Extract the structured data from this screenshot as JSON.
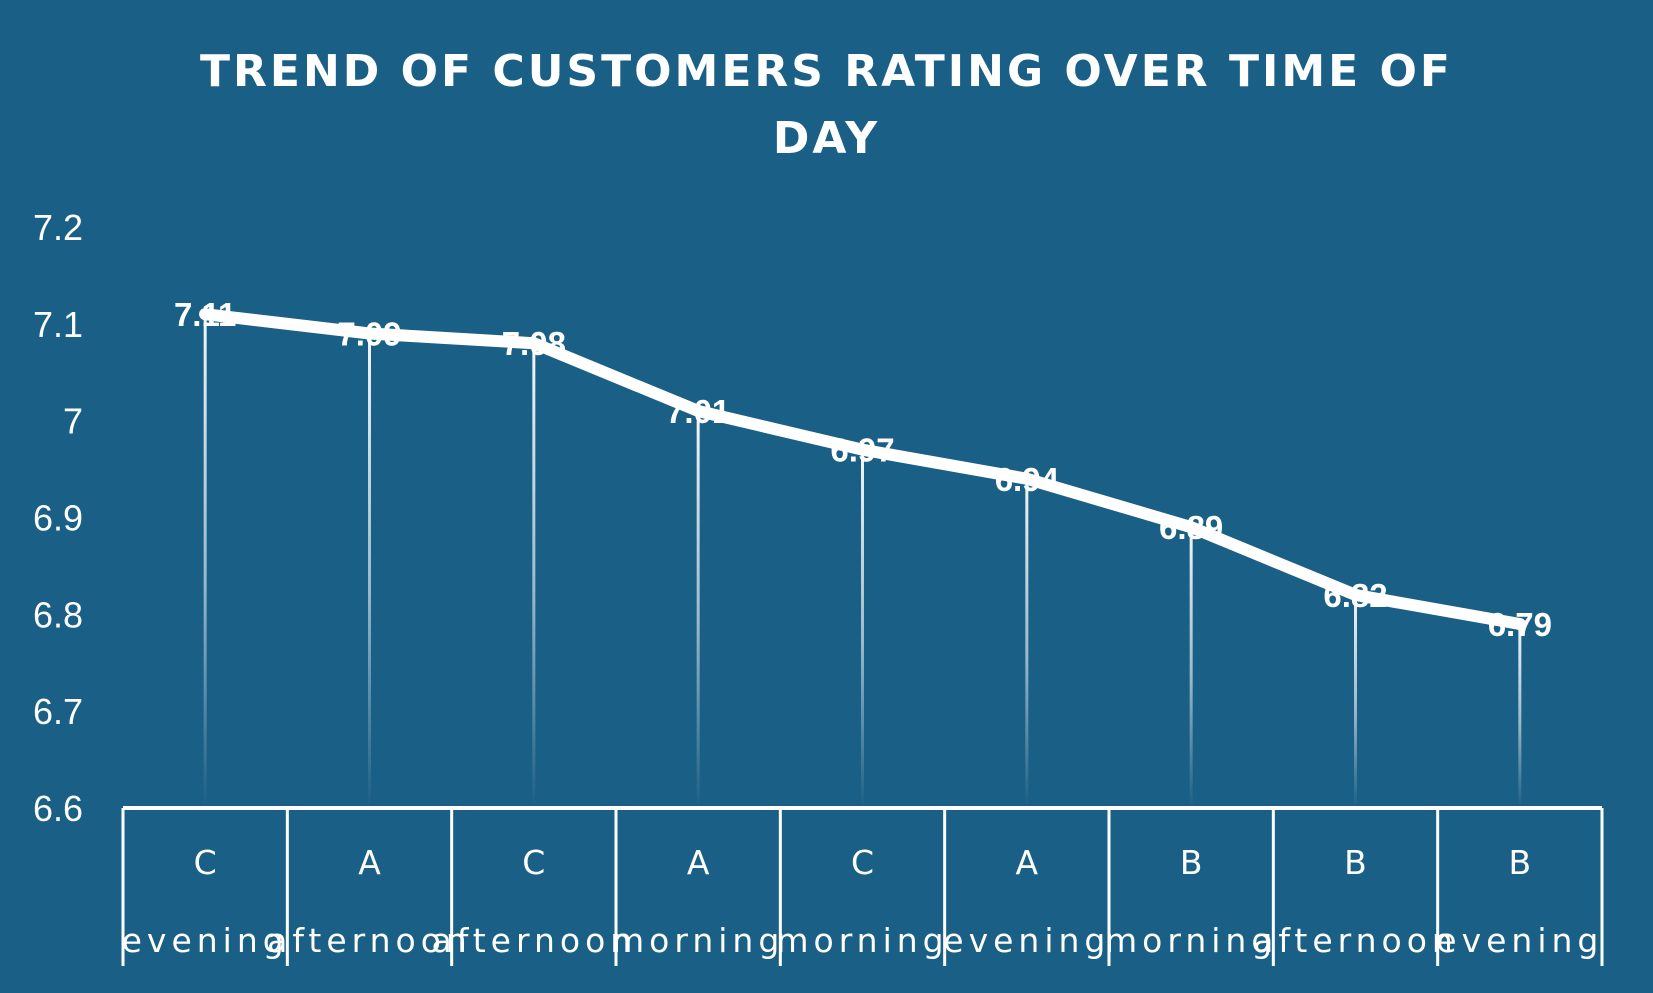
{
  "chart_data": {
    "type": "line",
    "title_lines": [
      "TREND OF CUSTOMERS RATING OVER TIME OF",
      "DAY"
    ],
    "categories": [
      {
        "group": "C",
        "label": "evening"
      },
      {
        "group": "A",
        "label": "afternoon"
      },
      {
        "group": "C",
        "label": "afternoon"
      },
      {
        "group": "A",
        "label": "morning"
      },
      {
        "group": "C",
        "label": "morning"
      },
      {
        "group": "A",
        "label": "evening"
      },
      {
        "group": "B",
        "label": "morning"
      },
      {
        "group": "B",
        "label": "afternoon"
      },
      {
        "group": "B",
        "label": "evening"
      }
    ],
    "values": [
      7.11,
      7.09,
      7.08,
      7.01,
      6.97,
      6.94,
      6.89,
      6.82,
      6.79
    ],
    "data_labels": [
      "7.11",
      "7.09",
      "7.08",
      "7.01",
      "6.97",
      "6.94",
      "6.89",
      "6.82",
      "6.79"
    ],
    "ylim": [
      6.6,
      7.2
    ],
    "yticks": [
      "6.6",
      "6.7",
      "6.8",
      "6.9",
      "7",
      "7.1",
      "7.2"
    ],
    "drop_lines": true,
    "legend": "none",
    "colors": {
      "background": "#1a5f85",
      "line": "#ffffff",
      "text": "#ffffff"
    }
  }
}
